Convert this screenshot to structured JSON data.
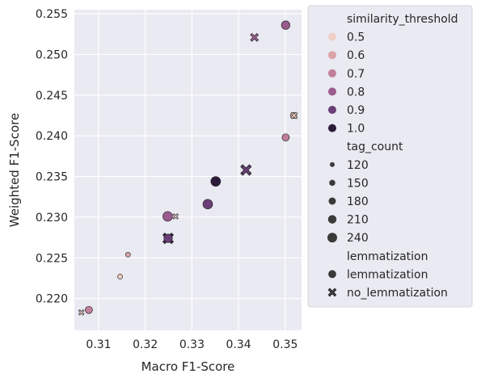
{
  "chart_data": {
    "type": "scatter",
    "title": "",
    "xlabel": "Macro F1-Score",
    "ylabel": "Weighted F1-Score",
    "xlim": [
      0.3048,
      0.3535
    ],
    "ylim": [
      0.2161,
      0.2555
    ],
    "xticks": [
      0.31,
      0.32,
      0.33,
      0.34,
      0.35
    ],
    "xtick_labels": [
      "0.31",
      "0.32",
      "0.33",
      "0.34",
      "0.35"
    ],
    "yticks": [
      0.22,
      0.225,
      0.23,
      0.235,
      0.24,
      0.245,
      0.25,
      0.255
    ],
    "ytick_labels": [
      "0.220",
      "0.225",
      "0.230",
      "0.235",
      "0.240",
      "0.245",
      "0.250",
      "0.255"
    ],
    "grid": true,
    "legend_placement": "outside-right",
    "colors": {
      "0.5": "#efcfc5",
      "0.6": "#dba3a8",
      "0.7": "#c07f99",
      "0.8": "#9a5b8e",
      "0.9": "#6b3e77",
      "1.0": "#2d1b3b"
    },
    "points": [
      {
        "x": 0.3501,
        "y": 0.2536,
        "similarity_threshold": "0.8",
        "tag_count": 210,
        "lemmatization": "lemmatization"
      },
      {
        "x": 0.3434,
        "y": 0.2521,
        "similarity_threshold": "0.8",
        "tag_count": 180,
        "lemmatization": "no_lemmatization"
      },
      {
        "x": 0.3518,
        "y": 0.2425,
        "similarity_threshold": "0.6",
        "tag_count": 150,
        "lemmatization": "lemmatization"
      },
      {
        "x": 0.3519,
        "y": 0.2425,
        "similarity_threshold": "0.5",
        "tag_count": 150,
        "lemmatization": "no_lemmatization"
      },
      {
        "x": 0.3501,
        "y": 0.2398,
        "similarity_threshold": "0.7",
        "tag_count": 180,
        "lemmatization": "lemmatization"
      },
      {
        "x": 0.3416,
        "y": 0.2358,
        "similarity_threshold": "1.0",
        "tag_count": 240,
        "lemmatization": "no_lemmatization"
      },
      {
        "x": 0.3416,
        "y": 0.2358,
        "similarity_threshold": "0.9",
        "tag_count": 210,
        "lemmatization": "no_lemmatization"
      },
      {
        "x": 0.3351,
        "y": 0.2344,
        "similarity_threshold": "1.0",
        "tag_count": 240,
        "lemmatization": "lemmatization"
      },
      {
        "x": 0.3334,
        "y": 0.2316,
        "similarity_threshold": "0.9",
        "tag_count": 240,
        "lemmatization": "lemmatization"
      },
      {
        "x": 0.3248,
        "y": 0.2301,
        "similarity_threshold": "0.8",
        "tag_count": 240,
        "lemmatization": "lemmatization"
      },
      {
        "x": 0.3265,
        "y": 0.2301,
        "similarity_threshold": "0.5",
        "tag_count": 120,
        "lemmatization": "no_lemmatization"
      },
      {
        "x": 0.3249,
        "y": 0.2274,
        "similarity_threshold": "1.0",
        "tag_count": 240,
        "lemmatization": "no_lemmatization"
      },
      {
        "x": 0.3249,
        "y": 0.2274,
        "similarity_threshold": "0.9",
        "tag_count": 210,
        "lemmatization": "lemmatization"
      },
      {
        "x": 0.3163,
        "y": 0.2254,
        "similarity_threshold": "0.6",
        "tag_count": 120,
        "lemmatization": "lemmatization"
      },
      {
        "x": 0.3146,
        "y": 0.2227,
        "similarity_threshold": "0.5",
        "tag_count": 120,
        "lemmatization": "lemmatization"
      },
      {
        "x": 0.3079,
        "y": 0.2186,
        "similarity_threshold": "0.7",
        "tag_count": 180,
        "lemmatization": "lemmatization"
      },
      {
        "x": 0.3063,
        "y": 0.2183,
        "similarity_threshold": "0.5",
        "tag_count": 120,
        "lemmatization": "no_lemmatization"
      }
    ],
    "legend": {
      "hue_title": "similarity_threshold",
      "hue_entries": [
        "0.5",
        "0.6",
        "0.7",
        "0.8",
        "0.9",
        "1.0"
      ],
      "size_title": "tag_count",
      "size_entries": [
        120,
        150,
        180,
        210,
        240
      ],
      "size_entry_labels": [
        "120",
        "150",
        "180",
        "210",
        "240"
      ],
      "style_title": "lemmatization",
      "style_entries": [
        "lemmatization",
        "no_lemmatization"
      ]
    }
  }
}
